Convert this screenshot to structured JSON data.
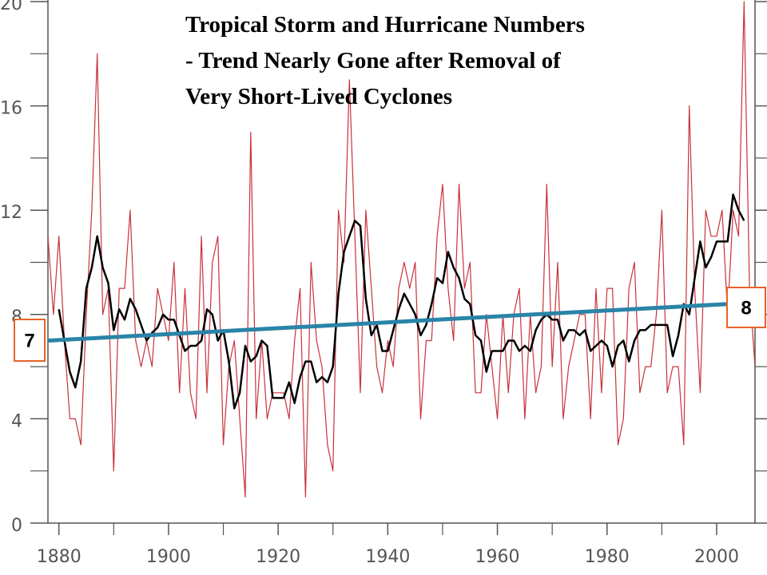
{
  "chart_data": {
    "type": "line",
    "title": [
      "Tropical Storm and Hurricane Numbers",
      "- Trend Nearly Gone after Removal of",
      "Very Short-Lived Cyclones"
    ],
    "x": [
      1878,
      1879,
      1880,
      1881,
      1882,
      1883,
      1884,
      1885,
      1886,
      1887,
      1888,
      1889,
      1890,
      1891,
      1892,
      1893,
      1894,
      1895,
      1896,
      1897,
      1898,
      1899,
      1900,
      1901,
      1902,
      1903,
      1904,
      1905,
      1906,
      1907,
      1908,
      1909,
      1910,
      1911,
      1912,
      1913,
      1914,
      1915,
      1916,
      1917,
      1918,
      1919,
      1920,
      1921,
      1922,
      1923,
      1924,
      1925,
      1926,
      1927,
      1928,
      1929,
      1930,
      1931,
      1932,
      1933,
      1934,
      1935,
      1936,
      1937,
      1938,
      1939,
      1940,
      1941,
      1942,
      1943,
      1944,
      1945,
      1946,
      1947,
      1948,
      1949,
      1950,
      1951,
      1952,
      1953,
      1954,
      1955,
      1956,
      1957,
      1958,
      1959,
      1960,
      1961,
      1962,
      1963,
      1964,
      1965,
      1966,
      1967,
      1968,
      1969,
      1970,
      1971,
      1972,
      1973,
      1974,
      1975,
      1976,
      1977,
      1978,
      1979,
      1980,
      1981,
      1982,
      1983,
      1984,
      1985,
      1986,
      1987,
      1988,
      1989,
      1990,
      1991,
      1992,
      1993,
      1994,
      1995,
      1996,
      1997,
      1998,
      1999,
      2000,
      2001,
      2002,
      2003,
      2004,
      2005,
      2006,
      2007
    ],
    "series": [
      {
        "color": "#c8323c",
        "width": 1.2,
        "values": [
          11,
          8,
          11,
          7,
          4,
          4,
          3,
          8,
          12,
          18,
          8,
          9,
          2,
          9,
          9,
          12,
          7,
          6,
          7,
          6,
          9,
          8,
          7,
          10,
          5,
          9,
          5,
          4,
          11,
          5,
          10,
          11,
          3,
          6,
          7,
          4,
          1,
          15,
          4,
          7,
          4,
          5,
          5,
          5,
          4,
          7,
          9,
          1,
          10,
          7,
          6,
          3,
          2,
          12,
          10,
          17,
          11,
          5,
          12,
          9,
          6,
          5,
          7,
          6,
          9,
          10,
          9,
          10,
          4,
          7,
          7,
          11,
          13,
          9,
          7,
          13,
          9,
          10,
          5,
          5,
          8,
          6,
          4,
          8,
          5,
          8,
          9,
          4,
          8,
          5,
          6,
          13,
          6,
          10,
          4,
          6,
          7,
          8,
          8,
          4,
          9,
          5,
          9,
          9,
          3,
          4,
          9,
          10,
          5,
          6,
          6,
          8,
          12,
          5,
          6,
          6,
          3,
          16,
          9,
          5,
          12,
          11,
          11,
          12,
          8,
          12,
          11,
          20,
          9,
          6
        ]
      },
      {
        "color": "#000000",
        "width": 2.5,
        "values": [
          null,
          null,
          8.2,
          7,
          5.8,
          5.2,
          6.2,
          9,
          9.8,
          11,
          9.8,
          9.2,
          7.4,
          8.2,
          7.8,
          8.6,
          8.2,
          7.6,
          7,
          7.3,
          7.5,
          8,
          7.8,
          7.8,
          7.2,
          6.6,
          6.8,
          6.8,
          7,
          8.2,
          8,
          7,
          7.4,
          6.2,
          4.4,
          5,
          6.8,
          6.2,
          6.4,
          7,
          6.8,
          4.8,
          4.8,
          4.8,
          5.4,
          4.6,
          5.6,
          6.2,
          6.2,
          5.4,
          5.6,
          5.4,
          6,
          8.8,
          10.4,
          11,
          11.6,
          11.4,
          8.6,
          7.2,
          7.6,
          6.6,
          6.6,
          7.4,
          8.2,
          8.8,
          8.4,
          8,
          7.2,
          7.6,
          8.4,
          9.4,
          9.2,
          10.4,
          9.8,
          9.4,
          8.6,
          8.4,
          7.2,
          7,
          5.8,
          6.6,
          6.6,
          6.6,
          7,
          7,
          6.6,
          6.8,
          6.6,
          7.4,
          7.8,
          8,
          7.8,
          7.8,
          7,
          7.4,
          7.4,
          7.2,
          7.4,
          6.6,
          6.8,
          7,
          6.8,
          6,
          6.8,
          7,
          6.2,
          7,
          7.4,
          7.4,
          7.6,
          7.6,
          7.6,
          7.6,
          6.4,
          7.2,
          8.4,
          8,
          9.4,
          10.8,
          9.8,
          10.2,
          10.8,
          10.8,
          10.8,
          12.6,
          12,
          11.6,
          null,
          null
        ]
      },
      {
        "color": "#2a84a8",
        "width": 5,
        "x": [
          1878,
          2002
        ],
        "values": [
          7,
          8.4
        ]
      }
    ],
    "annotations": [
      {
        "text": "7",
        "x": 1878,
        "y": 7
      },
      {
        "text": "8",
        "x": 2002,
        "y": 8.4
      }
    ],
    "annotation_color": "#e8622a",
    "xlim": [
      1878,
      2007
    ],
    "ylim": [
      0,
      20
    ],
    "xticks": [
      1880,
      1900,
      1920,
      1940,
      1960,
      1980,
      2000
    ],
    "xticks_minor": [
      1890,
      1910,
      1930,
      1950,
      1970,
      1990
    ],
    "yticks": [
      0,
      4,
      8,
      12,
      16,
      20
    ],
    "yticks_minor": [
      2,
      6,
      10,
      14,
      18
    ]
  }
}
